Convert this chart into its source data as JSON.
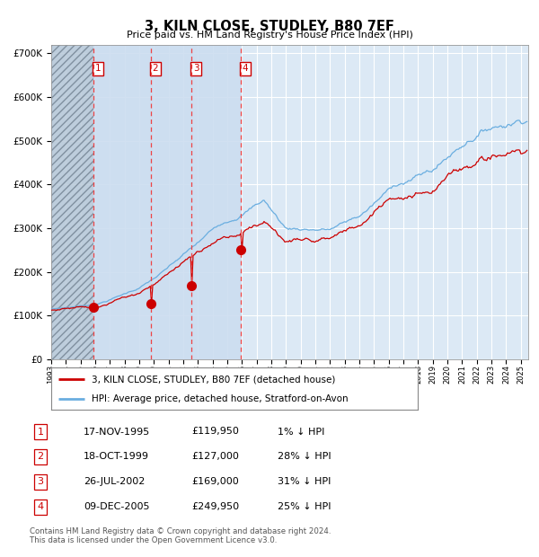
{
  "title": "3, KILN CLOSE, STUDLEY, B80 7EF",
  "subtitle": "Price paid vs. HM Land Registry's House Price Index (HPI)",
  "xlim_start": 1993.0,
  "xlim_end": 2025.5,
  "ylim": [
    0,
    720000
  ],
  "yticks": [
    0,
    100000,
    200000,
    300000,
    400000,
    500000,
    600000,
    700000
  ],
  "ytick_labels": [
    "£0",
    "£100K",
    "£200K",
    "£300K",
    "£400K",
    "£500K",
    "£600K",
    "£700K"
  ],
  "sale_dates_decimal": [
    1995.88,
    1999.79,
    2002.56,
    2005.92
  ],
  "sale_prices": [
    119950,
    127000,
    169000,
    249950
  ],
  "sale_labels": [
    "1",
    "2",
    "3",
    "4"
  ],
  "legend_red_label": "3, KILN CLOSE, STUDLEY, B80 7EF (detached house)",
  "legend_blue_label": "HPI: Average price, detached house, Stratford-on-Avon",
  "table_rows": [
    [
      "1",
      "17-NOV-1995",
      "£119,950",
      "1% ↓ HPI"
    ],
    [
      "2",
      "18-OCT-1999",
      "£127,000",
      "28% ↓ HPI"
    ],
    [
      "3",
      "26-JUL-2002",
      "£169,000",
      "31% ↓ HPI"
    ],
    [
      "4",
      "09-DEC-2005",
      "£249,950",
      "25% ↓ HPI"
    ]
  ],
  "footnote": "Contains HM Land Registry data © Crown copyright and database right 2024.\nThis data is licensed under the Open Government Licence v3.0.",
  "background_color": "#ffffff",
  "plot_bg_color": "#dce9f5",
  "grid_color": "#ffffff",
  "blue_line_color": "#6aaee0",
  "red_line_color": "#cc0000",
  "sale_marker_color": "#cc0000",
  "hatch_region_color": "#b8c8d8"
}
